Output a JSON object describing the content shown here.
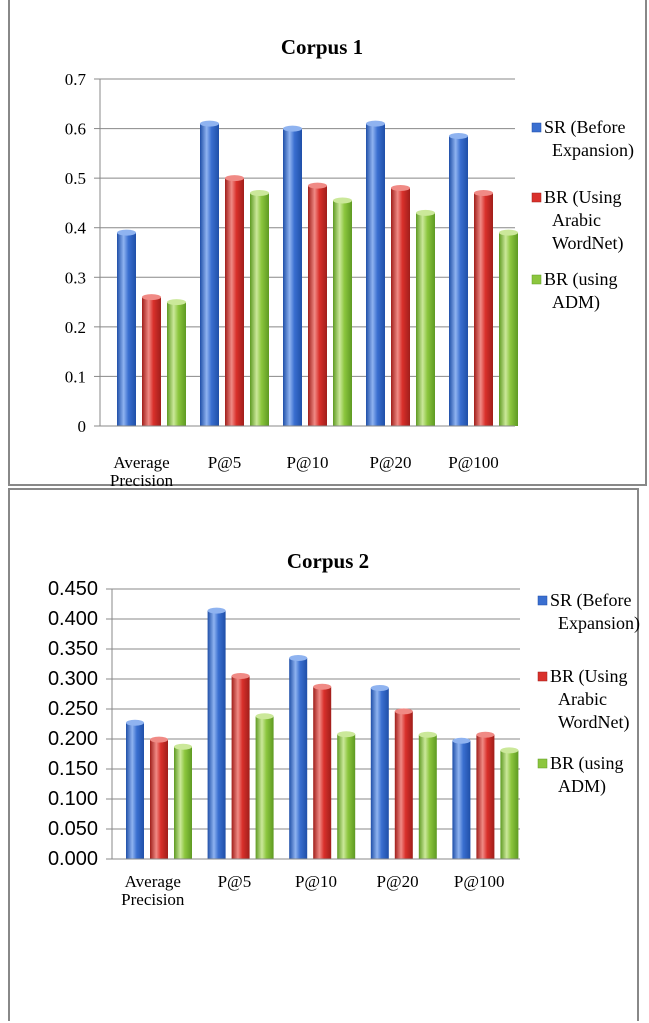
{
  "charts": [
    {
      "title": "Corpus 1",
      "type": "bar",
      "categories": [
        [
          "Average",
          "Precision"
        ],
        [
          "P@5"
        ],
        [
          "P@10"
        ],
        [
          "P@20"
        ],
        [
          "P@100"
        ]
      ],
      "series": [
        {
          "name": [
            "SR (Before",
            "Expansion)"
          ],
          "values": [
            0.39,
            0.61,
            0.6,
            0.61,
            0.585
          ],
          "color": "#3a6fd0",
          "light": "#8fb3f0",
          "dark": "#1f4fa8"
        },
        {
          "name": [
            "BR (Using",
            "Arabic",
            "WordNet)"
          ],
          "values": [
            0.26,
            0.5,
            0.485,
            0.48,
            0.47
          ],
          "color": "#d9302b",
          "light": "#f08a85",
          "dark": "#a01e1a"
        },
        {
          "name": [
            "BR (using",
            "ADM)"
          ],
          "values": [
            0.25,
            0.47,
            0.455,
            0.43,
            0.39
          ],
          "color": "#8cc63e",
          "light": "#cbe89a",
          "dark": "#5e9a22"
        }
      ],
      "ylim": [
        0,
        0.7
      ],
      "yticks": [
        "0",
        "0.1",
        "0.2",
        "0.3",
        "0.4",
        "0.5",
        "0.6",
        "0.7"
      ]
    },
    {
      "title": "Corpus 2",
      "type": "bar",
      "categories": [
        [
          "Average",
          "Precision"
        ],
        [
          "P@5"
        ],
        [
          "P@10"
        ],
        [
          "P@20"
        ],
        [
          "P@100"
        ]
      ],
      "series": [
        {
          "name": [
            "SR (Before",
            "Expansion)"
          ],
          "values": [
            0.227,
            0.414,
            0.335,
            0.285,
            0.197
          ],
          "color": "#3a6fd0",
          "light": "#8fb3f0",
          "dark": "#1f4fa8"
        },
        {
          "name": [
            "BR (Using",
            "Arabic",
            "WordNet)"
          ],
          "values": [
            0.199,
            0.305,
            0.287,
            0.246,
            0.207
          ],
          "color": "#d9302b",
          "light": "#f08a85",
          "dark": "#a01e1a"
        },
        {
          "name": [
            "BR (using",
            "ADM)"
          ],
          "values": [
            0.187,
            0.238,
            0.208,
            0.207,
            0.181
          ],
          "color": "#8cc63e",
          "light": "#cbe89a",
          "dark": "#5e9a22"
        }
      ],
      "ylim": [
        0,
        0.45
      ],
      "yticks": [
        "0.000",
        "0.050",
        "0.100",
        "0.150",
        "0.200",
        "0.250",
        "0.300",
        "0.350",
        "0.400",
        "0.450"
      ]
    }
  ]
}
